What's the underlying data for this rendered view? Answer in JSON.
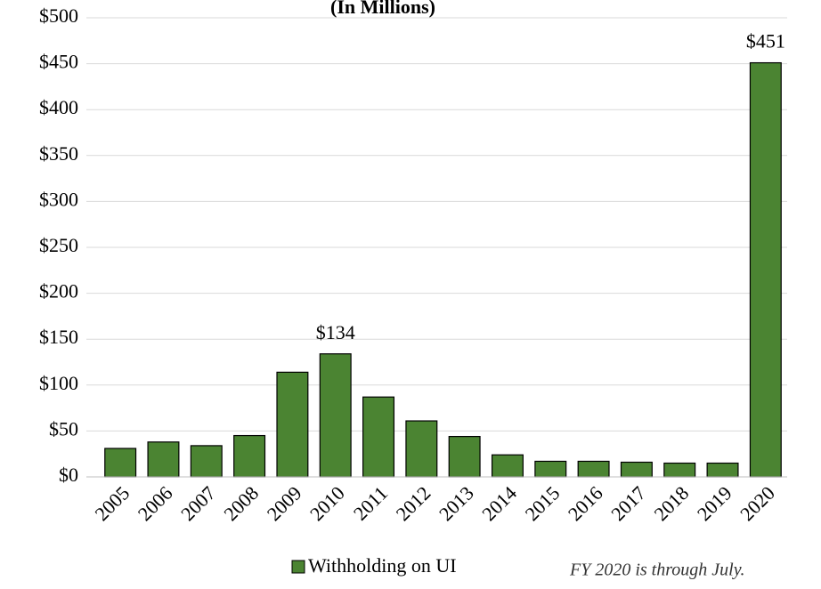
{
  "chart_data": {
    "type": "bar",
    "title": "(In Millions)",
    "categories": [
      "2005",
      "2006",
      "2007",
      "2008",
      "2009",
      "2010",
      "2011",
      "2012",
      "2013",
      "2014",
      "2015",
      "2016",
      "2017",
      "2018",
      "2019",
      "2020"
    ],
    "series": [
      {
        "name": "Withholding on UI",
        "color": "#4b8432",
        "values": [
          31,
          38,
          34,
          45,
          114,
          134,
          87,
          61,
          44,
          24,
          17,
          17,
          16,
          15,
          15,
          451
        ],
        "value_labels": [
          null,
          null,
          null,
          null,
          null,
          "$134",
          null,
          null,
          null,
          null,
          null,
          null,
          null,
          null,
          null,
          "$451"
        ]
      }
    ],
    "ylim": [
      0,
      500
    ],
    "yticks": [
      {
        "value": 0,
        "label": "$0"
      },
      {
        "value": 50,
        "label": "$50"
      },
      {
        "value": 100,
        "label": "$100"
      },
      {
        "value": 150,
        "label": "$150"
      },
      {
        "value": 200,
        "label": "$200"
      },
      {
        "value": 250,
        "label": "$250"
      },
      {
        "value": 300,
        "label": "$300"
      },
      {
        "value": 350,
        "label": "$350"
      },
      {
        "value": 400,
        "label": "$400"
      },
      {
        "value": 450,
        "label": "$450"
      },
      {
        "value": 500,
        "label": "$500"
      }
    ],
    "grid": true,
    "annotation": "FY 2020 is through July."
  }
}
